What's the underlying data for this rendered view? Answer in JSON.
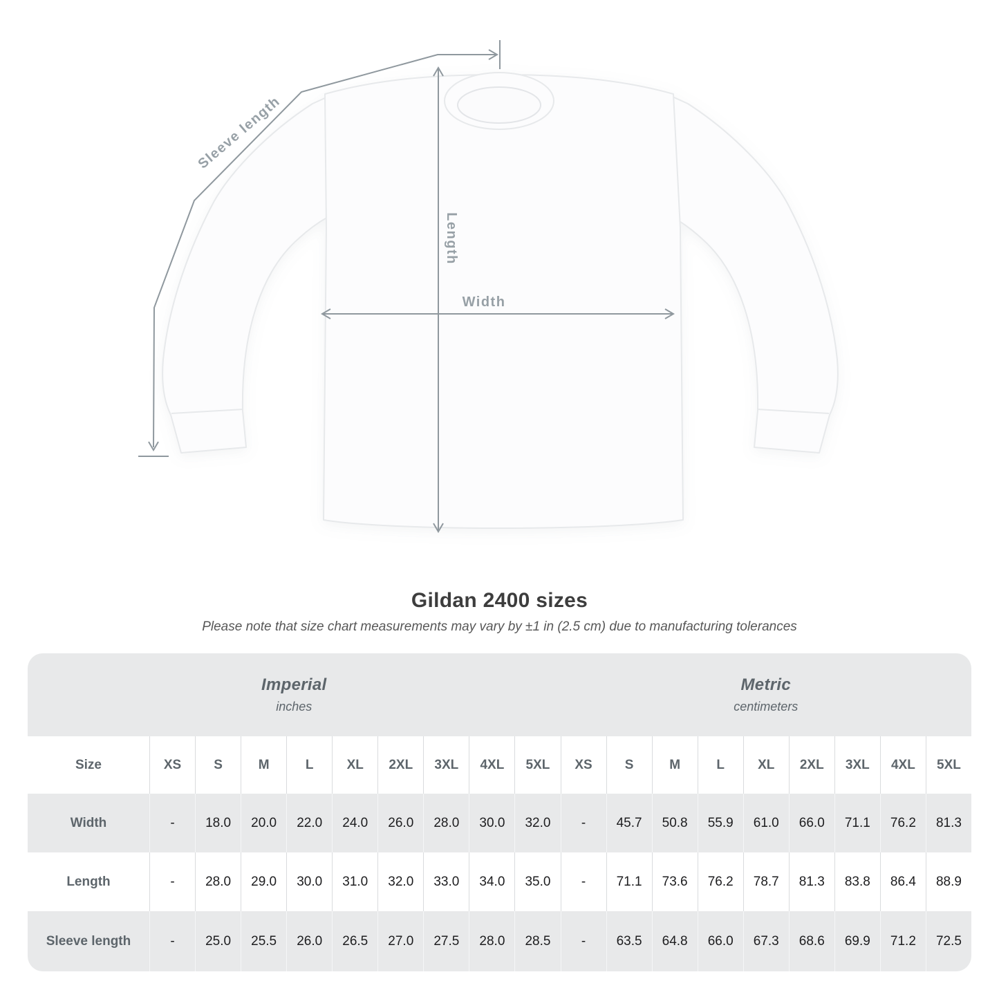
{
  "diagram": {
    "sleeve_length_label": "Sleeve length",
    "length_label": "Length",
    "width_label": "Width"
  },
  "title": "Gildan 2400 sizes",
  "subtitle": "Please note that size chart measurements may vary by ±1 in (2.5 cm) due to manufacturing tolerances",
  "table": {
    "unit_groups": [
      {
        "name": "Imperial",
        "unit": "inches"
      },
      {
        "name": "Metric",
        "unit": "centimeters"
      }
    ],
    "size_label": "Size",
    "sizes": [
      "XS",
      "S",
      "M",
      "L",
      "XL",
      "2XL",
      "3XL",
      "4XL",
      "5XL"
    ],
    "rows": [
      {
        "label": "Width",
        "imperial": [
          "-",
          "18.0",
          "20.0",
          "22.0",
          "24.0",
          "26.0",
          "28.0",
          "30.0",
          "32.0"
        ],
        "metric": [
          "-",
          "45.7",
          "50.8",
          "55.9",
          "61.0",
          "66.0",
          "71.1",
          "76.2",
          "81.3"
        ]
      },
      {
        "label": "Length",
        "imperial": [
          "-",
          "28.0",
          "29.0",
          "30.0",
          "31.0",
          "32.0",
          "33.0",
          "34.0",
          "35.0"
        ],
        "metric": [
          "-",
          "71.1",
          "73.6",
          "76.2",
          "78.7",
          "81.3",
          "83.8",
          "86.4",
          "88.9"
        ]
      },
      {
        "label": "Sleeve length",
        "imperial": [
          "-",
          "25.0",
          "25.5",
          "26.0",
          "26.5",
          "27.0",
          "27.5",
          "28.0",
          "28.5"
        ],
        "metric": [
          "-",
          "63.5",
          "64.8",
          "66.0",
          "67.3",
          "68.6",
          "69.9",
          "71.2",
          "72.5"
        ]
      }
    ]
  },
  "colors": {
    "arrow_gray": "#8f989e",
    "label_gray": "#97a0a6",
    "table_gray_row": "#e8e9ea",
    "table_text_gray": "#5d656b",
    "value_text": "#1d1d1f",
    "title_text": "#3d3d3d"
  }
}
